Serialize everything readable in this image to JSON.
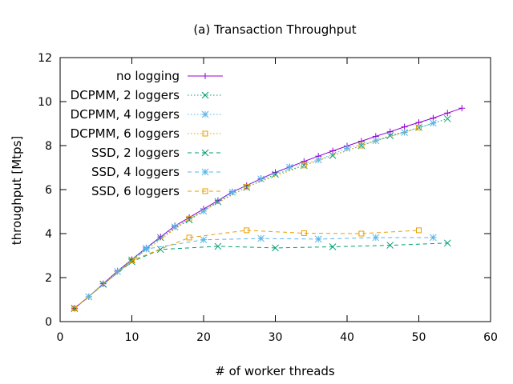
{
  "chart_data": {
    "type": "line",
    "title": "(a) Transaction Throughput",
    "xlabel": "# of worker threads",
    "ylabel": "throughput [Mtps]",
    "xlim": [
      0,
      60
    ],
    "ylim": [
      0,
      12
    ],
    "x_ticks": [
      "0",
      "10",
      "20",
      "30",
      "40",
      "50",
      "60"
    ],
    "y_ticks": [
      "0",
      "2",
      "4",
      "6",
      "8",
      "10",
      "12"
    ],
    "grid": false,
    "legend_position": "top-left",
    "series": [
      {
        "name": "no logging",
        "color": "#9400d3",
        "marker": "plus",
        "dash": "solid",
        "x": [
          2,
          4,
          6,
          8,
          10,
          12,
          14,
          16,
          18,
          20,
          22,
          24,
          26,
          28,
          30,
          32,
          34,
          36,
          38,
          40,
          42,
          44,
          46,
          48,
          50,
          52,
          54,
          56
        ],
        "y": [
          0.6,
          1.13,
          1.72,
          2.3,
          2.82,
          3.35,
          3.85,
          4.35,
          4.73,
          5.12,
          5.5,
          5.9,
          6.18,
          6.5,
          6.78,
          7.03,
          7.28,
          7.52,
          7.76,
          7.98,
          8.2,
          8.42,
          8.63,
          8.85,
          9.05,
          9.25,
          9.48,
          9.7
        ]
      },
      {
        "name": "DCPMM, 2 loggers",
        "color": "#009e73",
        "marker": "cross",
        "dash": "dot",
        "x": [
          2,
          6,
          10,
          14,
          18,
          22,
          26,
          30,
          34,
          38,
          42,
          46,
          50,
          54
        ],
        "y": [
          0.6,
          1.7,
          2.8,
          3.82,
          4.62,
          5.45,
          6.1,
          6.7,
          7.1,
          7.55,
          8.0,
          8.45,
          8.82,
          9.22
        ]
      },
      {
        "name": "DCPMM, 4 loggers",
        "color": "#56b4e9",
        "marker": "star",
        "dash": "dot",
        "x": [
          4,
          8,
          12,
          16,
          20,
          24,
          28,
          32,
          36,
          40,
          44,
          48,
          52
        ],
        "y": [
          1.13,
          2.28,
          3.33,
          4.3,
          5.02,
          5.88,
          6.48,
          7.02,
          7.35,
          7.88,
          8.22,
          8.6,
          9.02
        ]
      },
      {
        "name": "DCPMM, 6 loggers",
        "color": "#e69f00",
        "marker": "square",
        "dash": "dot",
        "x": [
          2,
          10,
          18,
          26,
          34,
          42,
          50
        ],
        "y": [
          0.6,
          2.78,
          4.68,
          6.12,
          7.1,
          8.0,
          8.82
        ]
      },
      {
        "name": "SSD, 2 loggers",
        "color": "#009e73",
        "marker": "cross",
        "dash": "dash",
        "x": [
          2,
          6,
          10,
          14,
          22,
          30,
          38,
          46,
          54
        ],
        "y": [
          0.6,
          1.7,
          2.72,
          3.28,
          3.42,
          3.35,
          3.4,
          3.47,
          3.57
        ]
      },
      {
        "name": "SSD, 4 loggers",
        "color": "#56b4e9",
        "marker": "star",
        "dash": "dash",
        "x": [
          4,
          12,
          20,
          28,
          36,
          44,
          52
        ],
        "y": [
          1.13,
          3.3,
          3.72,
          3.78,
          3.75,
          3.82,
          3.82
        ]
      },
      {
        "name": "SSD, 6 loggers",
        "color": "#e69f00",
        "marker": "square",
        "dash": "dash",
        "x": [
          2,
          10,
          18,
          26,
          34,
          42,
          50
        ],
        "y": [
          0.6,
          2.78,
          3.82,
          4.15,
          4.02,
          4.0,
          4.15
        ]
      }
    ]
  }
}
